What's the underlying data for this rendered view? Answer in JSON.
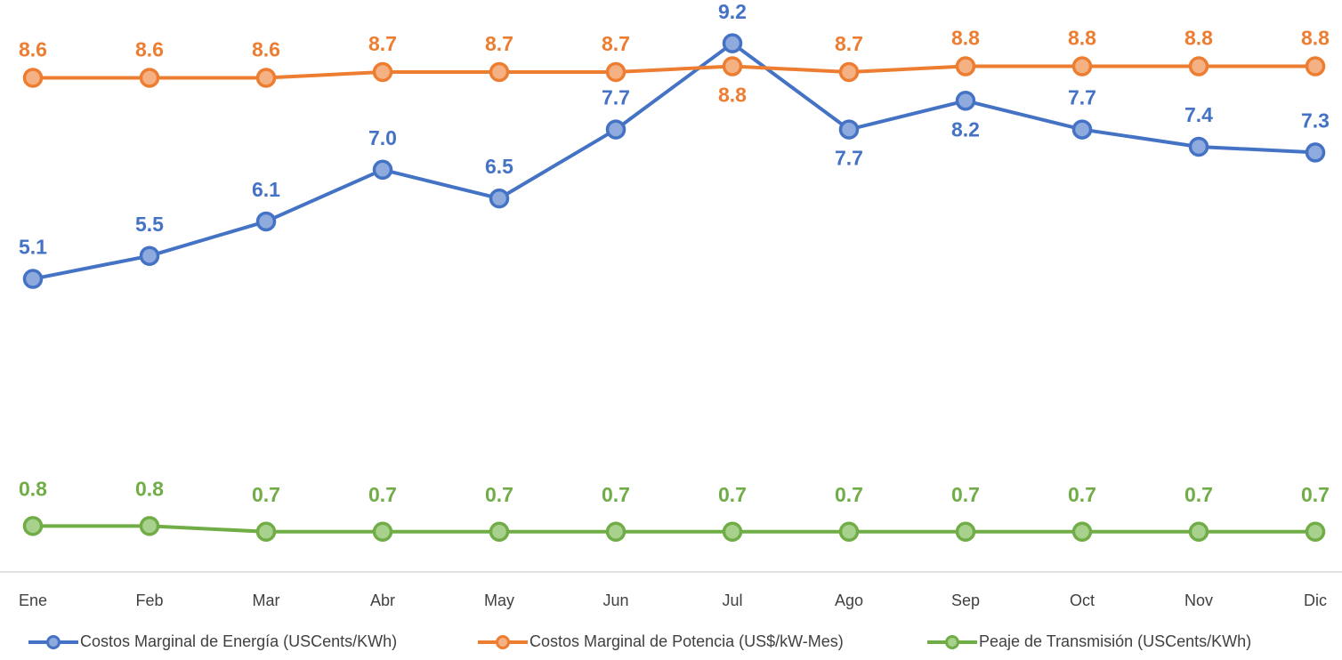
{
  "chart_data": {
    "type": "line",
    "categories": [
      "Ene",
      "Feb",
      "Mar",
      "Abr",
      "May",
      "Jun",
      "Jul",
      "Ago",
      "Sep",
      "Oct",
      "Nov",
      "Dic"
    ],
    "series": [
      {
        "name": "Costos Marginal de Energía (USCents/KWh)",
        "color": "#4472c4",
        "values": [
          5.1,
          5.5,
          6.1,
          7.0,
          6.5,
          7.7,
          9.2,
          7.7,
          8.2,
          7.7,
          7.4,
          7.3
        ],
        "value_labels": [
          "5.1",
          "5.5",
          "6.1",
          "7.0",
          "6.5",
          "7.7",
          "9.2",
          "7.7",
          "8.2",
          "7.7",
          "7.4",
          "7.3"
        ]
      },
      {
        "name": "Costos Marginal de Potencia  (US$/kW-Mes)",
        "color": "#ed7d31",
        "values": [
          8.6,
          8.6,
          8.6,
          8.7,
          8.7,
          8.7,
          8.8,
          8.7,
          8.8,
          8.8,
          8.8,
          8.8
        ]
      },
      {
        "name": "Peaje de Transmisión (USCents/KWh)",
        "color": "#70ad47",
        "values": [
          0.8,
          0.8,
          0.7,
          0.7,
          0.7,
          0.7,
          0.7,
          0.7,
          0.7,
          0.7,
          0.7,
          0.7
        ]
      }
    ],
    "ylim": [
      0,
      10
    ],
    "grid": false,
    "legend": "bottom"
  }
}
